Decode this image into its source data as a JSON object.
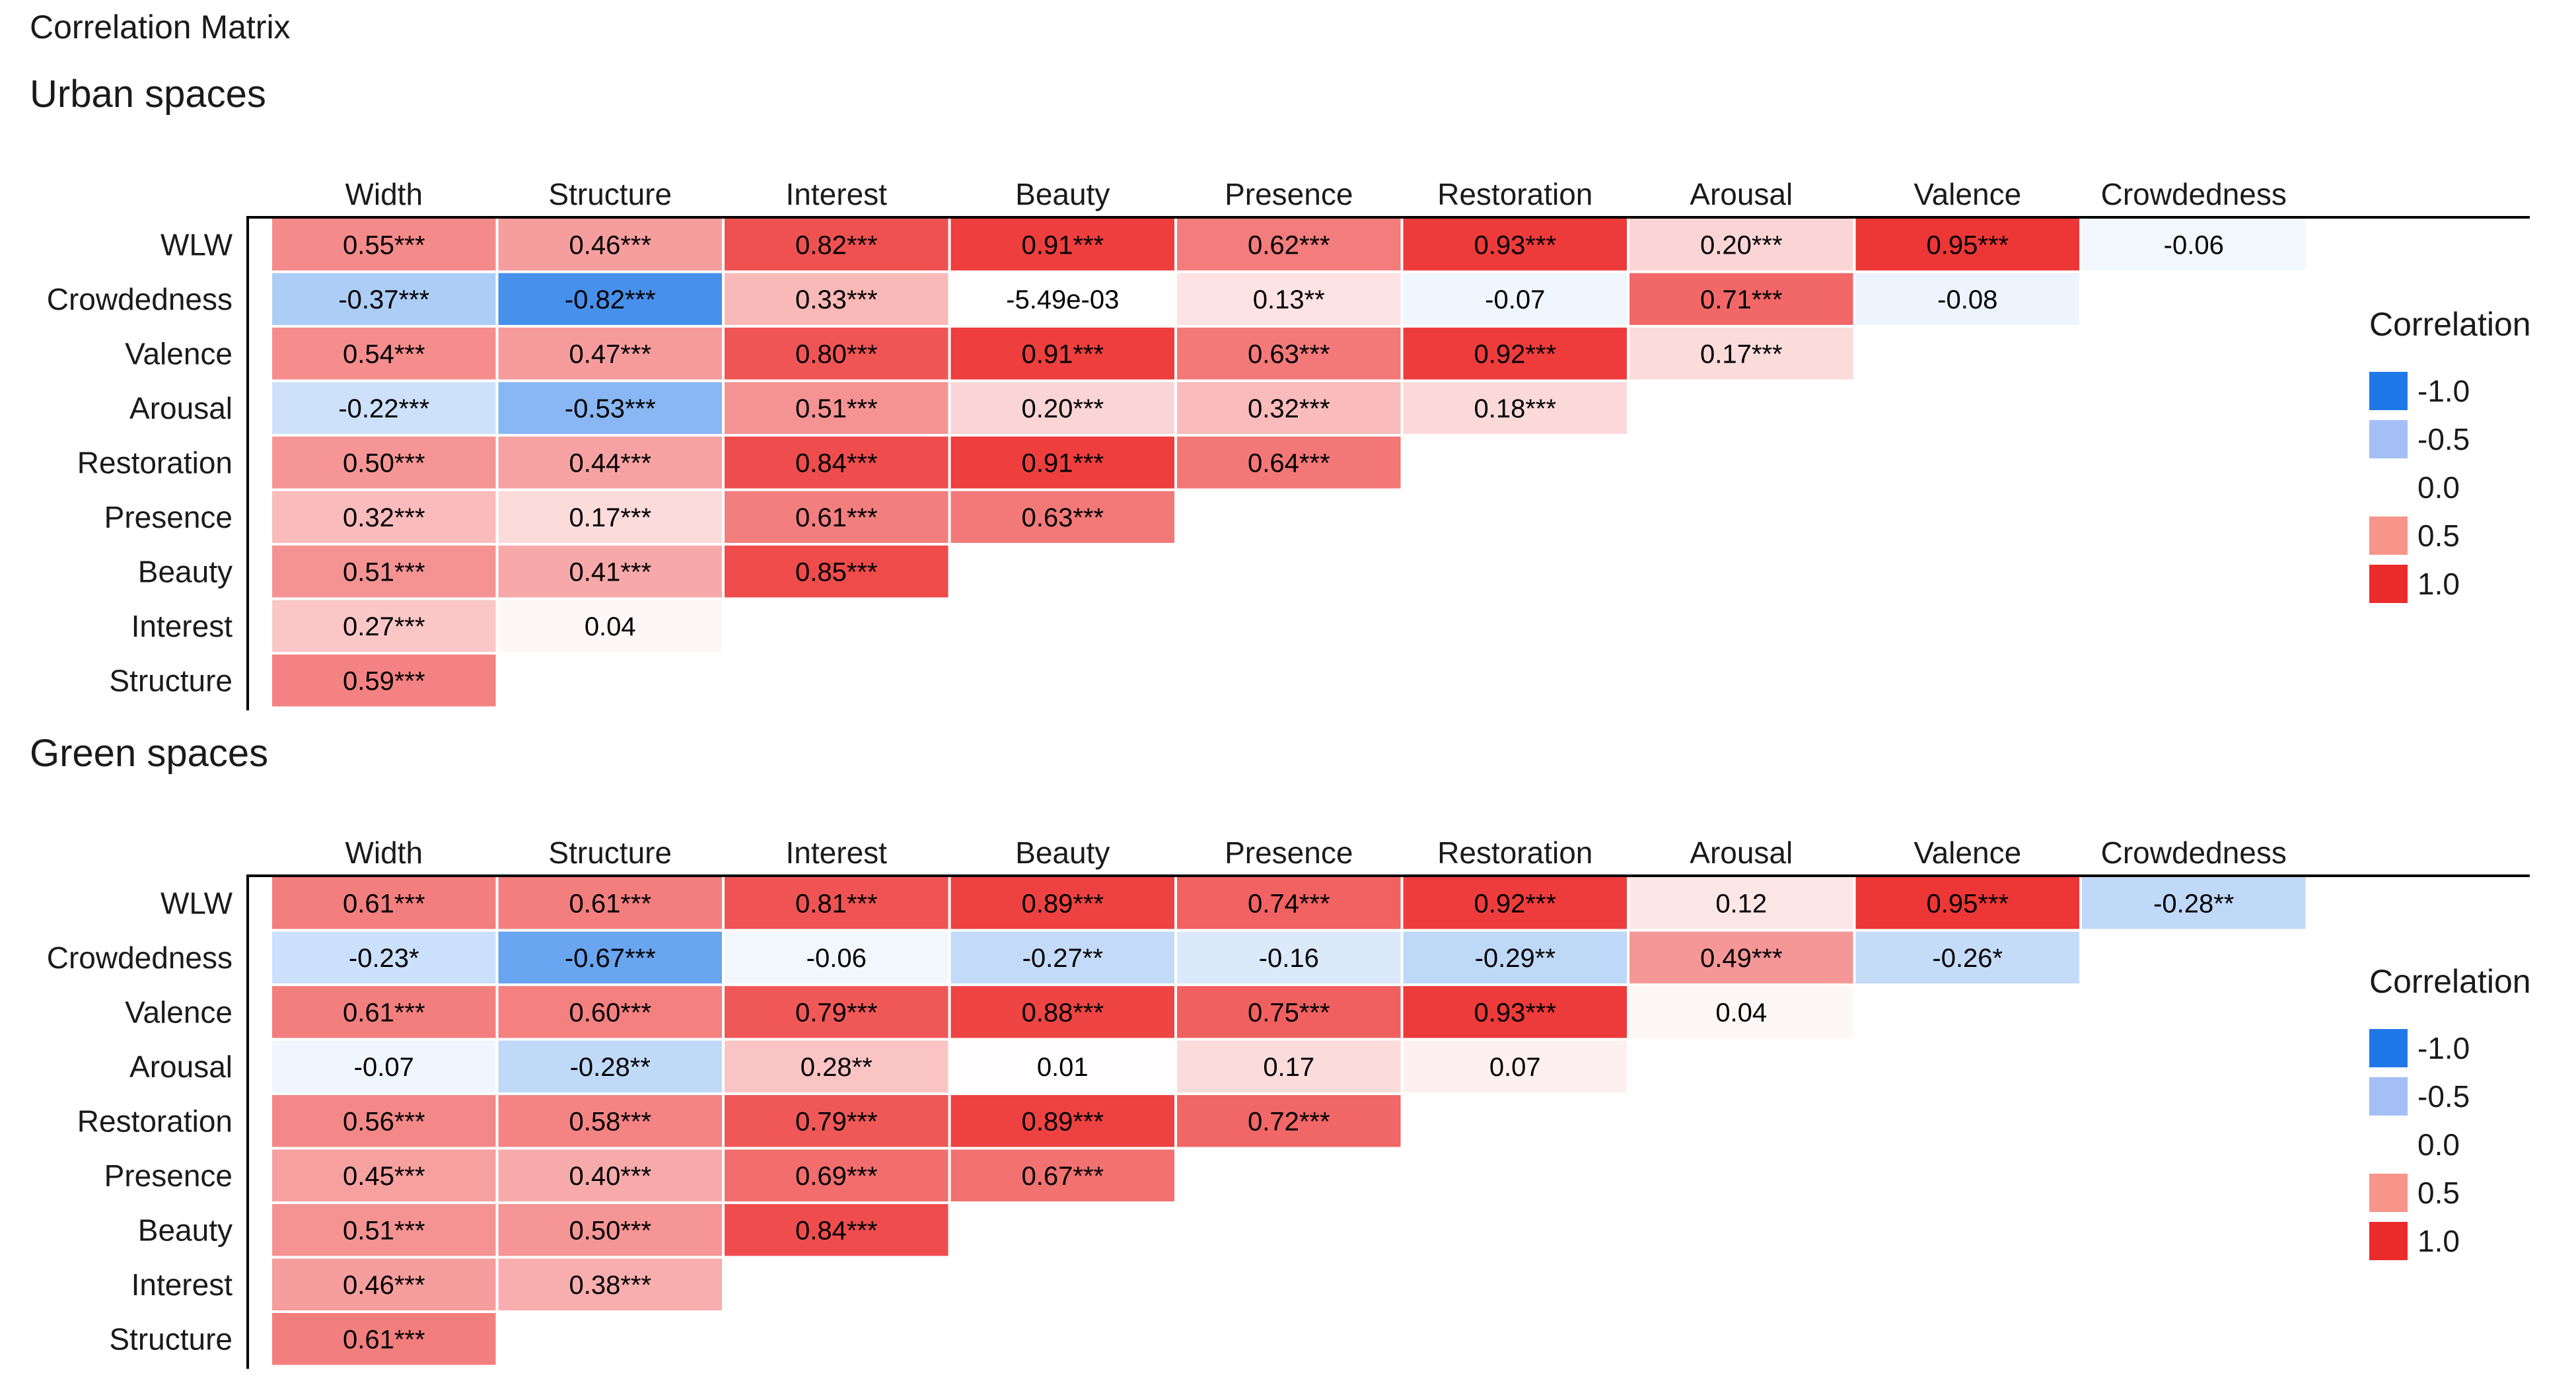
{
  "page_title": "Correlation Matrix",
  "legend": {
    "title": "Correlation",
    "entries": [
      {
        "value": -1.0,
        "label": "-1.0",
        "color": "#1F78E8"
      },
      {
        "value": -0.5,
        "label": "-0.5",
        "color": "#A3BFF5"
      },
      {
        "value": 0.0,
        "label": "0.0",
        "color": "#FFFFFF"
      },
      {
        "value": 0.5,
        "label": "0.5",
        "color": "#F8958A"
      },
      {
        "value": 1.0,
        "label": "1.0",
        "color": "#EC2B2B"
      }
    ]
  },
  "chart_data": [
    {
      "type": "heatmap",
      "title": "Urban spaces",
      "columns": [
        "Width",
        "Structure",
        "Interest",
        "Beauty",
        "Presence",
        "Restoration",
        "Arousal",
        "Valence",
        "Crowdedness"
      ],
      "rows": [
        "WLW",
        "Crowdedness",
        "Valence",
        "Arousal",
        "Restoration",
        "Presence",
        "Beauty",
        "Interest",
        "Structure"
      ],
      "values": [
        [
          0.55,
          0.46,
          0.82,
          0.91,
          0.62,
          0.93,
          0.2,
          0.95,
          -0.06
        ],
        [
          -0.37,
          -0.82,
          0.33,
          -0.00549,
          0.13,
          -0.07,
          0.71,
          -0.08
        ],
        [
          0.54,
          0.47,
          0.8,
          0.91,
          0.63,
          0.92,
          0.17
        ],
        [
          -0.22,
          -0.53,
          0.51,
          0.2,
          0.32,
          0.18
        ],
        [
          0.5,
          0.44,
          0.84,
          0.91,
          0.64
        ],
        [
          0.32,
          0.17,
          0.61,
          0.63
        ],
        [
          0.51,
          0.41,
          0.85
        ],
        [
          0.27,
          0.04
        ],
        [
          0.59
        ]
      ],
      "labels": [
        [
          "0.55***",
          "0.46***",
          "0.82***",
          "0.91***",
          "0.62***",
          "0.93***",
          "0.20***",
          "0.95***",
          "-0.06"
        ],
        [
          "-0.37***",
          "-0.82***",
          "0.33***",
          "-5.49e-03",
          "0.13**",
          "-0.07",
          "0.71***",
          "-0.08"
        ],
        [
          "0.54***",
          "0.47***",
          "0.80***",
          "0.91***",
          "0.63***",
          "0.92***",
          "0.17***"
        ],
        [
          "-0.22***",
          "-0.53***",
          "0.51***",
          "0.20***",
          "0.32***",
          "0.18***"
        ],
        [
          "0.50***",
          "0.44***",
          "0.84***",
          "0.91***",
          "0.64***"
        ],
        [
          "0.32***",
          "0.17***",
          "0.61***",
          "0.63***"
        ],
        [
          "0.51***",
          "0.41***",
          "0.85***"
        ],
        [
          "0.27***",
          "0.04"
        ],
        [
          "0.59***"
        ]
      ],
      "color_range": [
        -1,
        1
      ]
    },
    {
      "type": "heatmap",
      "title": "Green spaces",
      "columns": [
        "Width",
        "Structure",
        "Interest",
        "Beauty",
        "Presence",
        "Restoration",
        "Arousal",
        "Valence",
        "Crowdedness"
      ],
      "rows": [
        "WLW",
        "Crowdedness",
        "Valence",
        "Arousal",
        "Restoration",
        "Presence",
        "Beauty",
        "Interest",
        "Structure"
      ],
      "values": [
        [
          0.61,
          0.61,
          0.81,
          0.89,
          0.74,
          0.92,
          0.12,
          0.95,
          -0.28
        ],
        [
          -0.23,
          -0.67,
          -0.06,
          -0.27,
          -0.16,
          -0.29,
          0.49,
          -0.26
        ],
        [
          0.61,
          0.6,
          0.79,
          0.88,
          0.75,
          0.93,
          0.04
        ],
        [
          -0.07,
          -0.28,
          0.28,
          0.01,
          0.17,
          0.07
        ],
        [
          0.56,
          0.58,
          0.79,
          0.89,
          0.72
        ],
        [
          0.45,
          0.4,
          0.69,
          0.67
        ],
        [
          0.51,
          0.5,
          0.84
        ],
        [
          0.46,
          0.38
        ],
        [
          0.61
        ]
      ],
      "labels": [
        [
          "0.61***",
          "0.61***",
          "0.81***",
          "0.89***",
          "0.74***",
          "0.92***",
          "0.12",
          "0.95***",
          "-0.28**"
        ],
        [
          "-0.23*",
          "-0.67***",
          "-0.06",
          "-0.27**",
          "-0.16",
          "-0.29**",
          "0.49***",
          "-0.26*"
        ],
        [
          "0.61***",
          "0.60***",
          "0.79***",
          "0.88***",
          "0.75***",
          "0.93***",
          "0.04"
        ],
        [
          "-0.07",
          "-0.28**",
          "0.28**",
          "0.01",
          "0.17",
          "0.07"
        ],
        [
          "0.56***",
          "0.58***",
          "0.79***",
          "0.89***",
          "0.72***"
        ],
        [
          "0.45***",
          "0.40***",
          "0.69***",
          "0.67***"
        ],
        [
          "0.51***",
          "0.50***",
          "0.84***"
        ],
        [
          "0.46***",
          "0.38***"
        ],
        [
          "0.61***"
        ]
      ],
      "color_range": [
        -1,
        1
      ]
    }
  ]
}
